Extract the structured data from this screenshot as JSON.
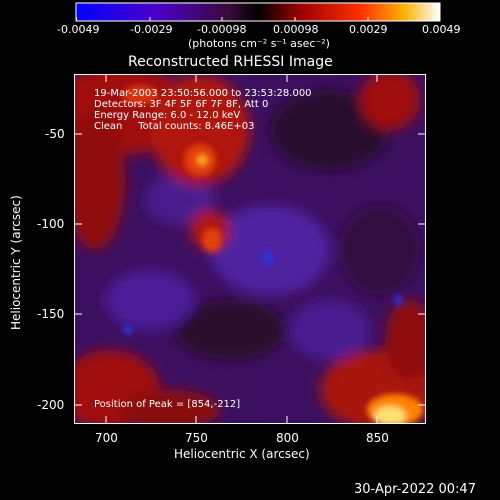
{
  "colorbar": {
    "ticks": [
      "-0.0049",
      "-0.0029",
      "-0.00098",
      "0.00098",
      "0.0029",
      "0.0049"
    ],
    "units_label": "(photons cm⁻² s⁻¹ asec⁻²)"
  },
  "plot": {
    "title": "Reconstructed RHESSI Image",
    "xlabel": "Heliocentric X (arcsec)",
    "ylabel": "Heliocentric Y (arcsec)",
    "xticks": [
      "700",
      "750",
      "800",
      "850"
    ],
    "yticks": [
      "-50",
      "-100",
      "-150",
      "-200"
    ],
    "info_lines": [
      "19-Mar-2003 23:50:56.000 to 23:53:28.000",
      "Detectors: 3F 4F 5F 6F 7F 8F, Att 0",
      "Energy Range: 6.0 - 12.0 keV",
      "Clean     Total counts: 8.46E+03"
    ],
    "peak_label": "Position of Peak = [854,-212]"
  },
  "footer": {
    "timestamp": "30-Apr-2022 00:47"
  },
  "chart_data": {
    "type": "heatmap",
    "title": "Reconstructed RHESSI Image",
    "xlabel": "Heliocentric X (arcsec)",
    "ylabel": "Heliocentric Y (arcsec)",
    "xlim": [
      685,
      878
    ],
    "ylim": [
      -218,
      -20
    ],
    "colorbar_range": [
      -0.0049,
      0.0049
    ],
    "peak": [
      854,
      -212
    ]
  }
}
